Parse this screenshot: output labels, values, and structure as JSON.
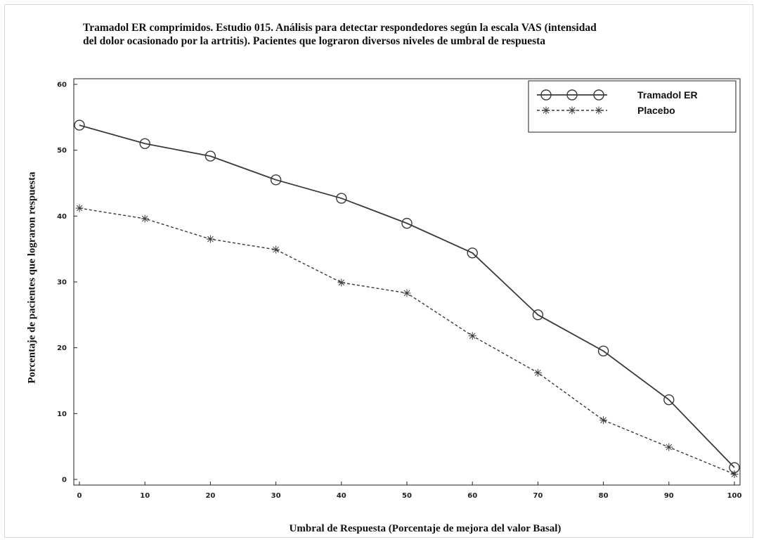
{
  "chart_data": {
    "type": "line",
    "title_line1": "Tramadol ER comprimidos. Estudio 015. Análisis para detectar respondedores según la escala VAS (intensidad",
    "title_line2": "del dolor ocasionado por la artritis). Pacientes que lograron diversos niveles de umbral de respuesta",
    "xlabel": "Umbral de Respuesta (Porcentaje de mejora del valor Basal)",
    "ylabel": "Porcentaje de pacientes que lograron respuesta",
    "x": [
      0,
      10,
      20,
      30,
      40,
      50,
      60,
      70,
      80,
      90,
      100
    ],
    "x_ticks": [
      "0",
      "10",
      "20",
      "30",
      "40",
      "50",
      "60",
      "70",
      "80",
      "90",
      "100"
    ],
    "y_ticks": [
      "0",
      "10",
      "20",
      "30",
      "40",
      "50",
      "60"
    ],
    "xlim": [
      0,
      100
    ],
    "ylim": [
      0,
      60
    ],
    "grid": false,
    "legend_position": "top-right",
    "series": [
      {
        "name": "Tramadol ER",
        "marker": "circle",
        "line_style": "solid",
        "color": "#3a3a3a",
        "values": [
          53.8,
          51.0,
          49.1,
          45.5,
          42.7,
          38.9,
          34.4,
          25.0,
          19.5,
          12.1,
          1.8
        ]
      },
      {
        "name": "Placebo",
        "marker": "star",
        "line_style": "dashed",
        "color": "#3a3a3a",
        "values": [
          41.2,
          39.6,
          36.5,
          34.9,
          29.9,
          28.3,
          21.8,
          16.2,
          9.0,
          4.9,
          0.8
        ]
      }
    ]
  }
}
